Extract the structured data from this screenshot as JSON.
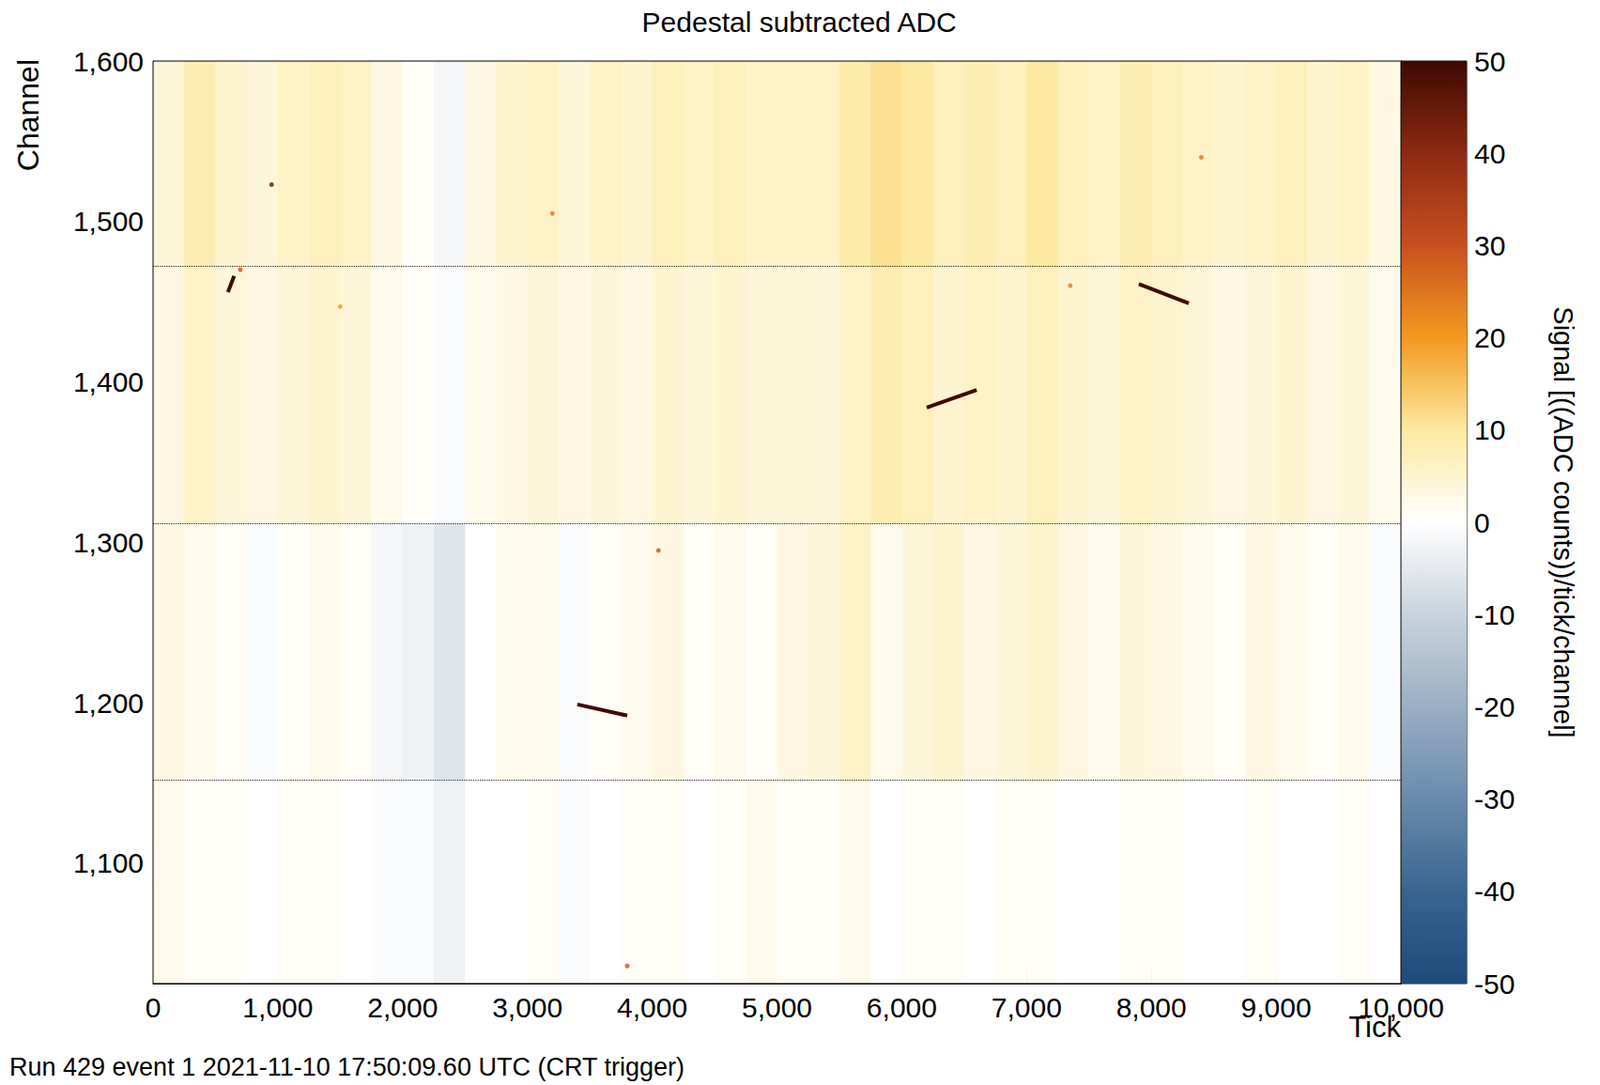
{
  "chart_data": {
    "type": "heatmap",
    "title": "Pedestal subtracted ADC",
    "x_label": "Tick",
    "y_label": "Channel",
    "annotation": "Run 429 event 1 2021-11-10 17:50:09.60 UTC (CRT trigger)",
    "xlim": [
      0,
      10000
    ],
    "xticks": [
      0,
      1000,
      2000,
      3000,
      4000,
      5000,
      6000,
      7000,
      8000,
      9000,
      10000
    ],
    "ylim": [
      1025,
      1600
    ],
    "yticks": [
      1100,
      1200,
      1300,
      1400,
      1500,
      1600
    ],
    "cells": {
      "tick_bins": [
        0,
        250,
        500,
        750,
        1000,
        1250,
        1500,
        1750,
        2000,
        2250,
        2500,
        2750,
        3000,
        3250,
        3500,
        3750,
        4000,
        4250,
        4500,
        4750,
        5000,
        5250,
        5500,
        5750,
        6000,
        6250,
        6500,
        6750,
        7000,
        7250,
        7500,
        7750,
        8000,
        8250,
        8500,
        8750,
        9000,
        9250,
        9500,
        9750,
        10000
      ],
      "channel_bins": [
        1025,
        1152,
        1312,
        1472,
        1600
      ],
      "values": [
        [
          2,
          1,
          1,
          0,
          1,
          1,
          0,
          -1,
          -1,
          -3,
          0,
          0,
          1,
          -1,
          0,
          1,
          1,
          0,
          1,
          2,
          1,
          1,
          2,
          0,
          1,
          1,
          0,
          1,
          1,
          0,
          0,
          1,
          1,
          0,
          0,
          1,
          0,
          0,
          1,
          0
        ],
        [
          3,
          2,
          1,
          -1,
          1,
          2,
          1,
          -2,
          -3,
          -6,
          0,
          2,
          2,
          -1,
          1,
          2,
          3,
          1,
          2,
          1,
          3,
          4,
          6,
          2,
          4,
          5,
          3,
          4,
          5,
          3,
          2,
          4,
          3,
          2,
          1,
          3,
          2,
          1,
          2,
          -1
        ],
        [
          3,
          6,
          4,
          3,
          4,
          5,
          4,
          2,
          1,
          -1,
          2,
          3,
          4,
          3,
          4,
          3,
          5,
          4,
          5,
          4,
          4,
          4,
          6,
          8,
          7,
          5,
          6,
          5,
          7,
          5,
          4,
          6,
          5,
          4,
          3,
          4,
          5,
          3,
          4,
          2
        ],
        [
          4,
          8,
          5,
          4,
          6,
          7,
          6,
          3,
          1,
          -2,
          3,
          5,
          6,
          4,
          6,
          5,
          7,
          6,
          7,
          6,
          6,
          6,
          9,
          11,
          10,
          7,
          8,
          7,
          10,
          7,
          6,
          8,
          7,
          6,
          5,
          6,
          7,
          5,
          6,
          3
        ]
      ]
    },
    "tracks": [
      {
        "ticks": [
          3400,
          3800
        ],
        "channels": [
          1199,
          1192
        ],
        "signal": 50
      },
      {
        "ticks": [
          6200,
          6600
        ],
        "channels": [
          1384,
          1395
        ],
        "signal": 50
      },
      {
        "ticks": [
          7900,
          8300
        ],
        "channels": [
          1461,
          1449
        ],
        "signal": 50
      },
      {
        "ticks": [
          600,
          650
        ],
        "channels": [
          1456,
          1466
        ],
        "signal": 50
      }
    ],
    "hits": {
      "ticks": [
        950,
        4050,
        1500,
        3200,
        7350,
        8400,
        3800,
        700
      ],
      "channels": [
        1523,
        1295,
        1447,
        1505,
        1460,
        1540,
        1036,
        1470
      ],
      "signals": [
        45,
        30,
        20,
        25,
        25,
        25,
        30,
        30
      ]
    },
    "boundaries": {
      "channels": [
        1152,
        1312,
        1472
      ],
      "line_style": "dotted"
    },
    "colorbar": {
      "label": "Signal [((ADC counts))/tick/channel]",
      "range": [
        -50,
        50
      ],
      "ticks": [
        -50,
        -40,
        -30,
        -20,
        -10,
        0,
        10,
        20,
        30,
        40,
        50
      ],
      "colorscale": [
        [
          -50,
          "#1e4a7a"
        ],
        [
          -40,
          "#3a6590"
        ],
        [
          -30,
          "#6a8aab"
        ],
        [
          -20,
          "#9aafc4"
        ],
        [
          -10,
          "#c8d3de"
        ],
        [
          0,
          "#ffffff"
        ],
        [
          10,
          "#fde9a0"
        ],
        [
          20,
          "#f39a1e"
        ],
        [
          30,
          "#c8501e"
        ],
        [
          40,
          "#8c2a12"
        ],
        [
          50,
          "#3d0a02"
        ]
      ]
    }
  }
}
